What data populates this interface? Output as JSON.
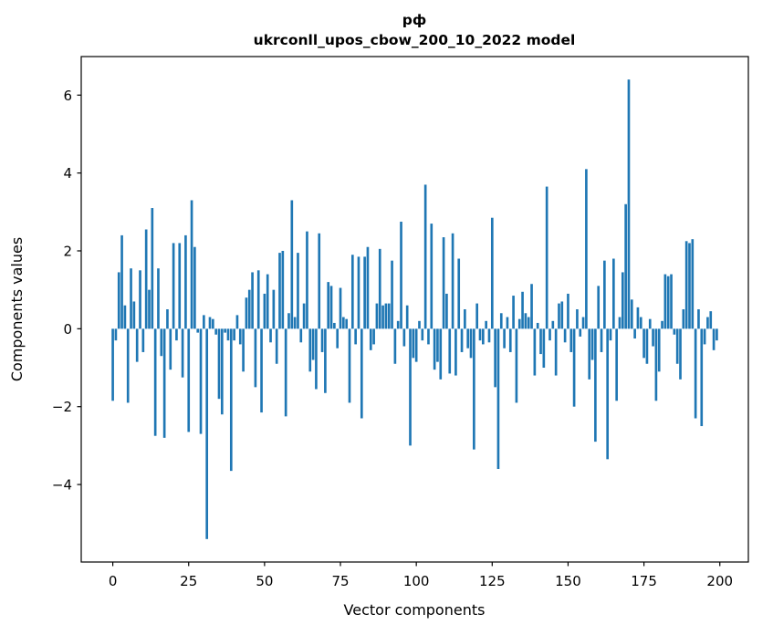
{
  "figure": {
    "title_line1": "рф",
    "title_line2": "ukrconll_upos_cbow_200_10_2022 model",
    "xlabel": "Vector components",
    "ylabel": "Components values"
  },
  "colors": {
    "bar": "#1f77b4",
    "axis": "#000000",
    "background": "#ffffff"
  },
  "chart_data": {
    "type": "bar",
    "title": "рф — ukrconll_upos_cbow_200_10_2022 model",
    "xlabel": "Vector components",
    "ylabel": "Components values",
    "xlim": [
      -10.4,
      209.4
    ],
    "ylim": [
      -5.99,
      6.99
    ],
    "xticks": [
      0,
      25,
      50,
      75,
      100,
      125,
      150,
      175,
      200
    ],
    "yticks": [
      -4,
      -2,
      0,
      2,
      4,
      6
    ],
    "bar_width": 0.8,
    "legend": "none",
    "grid": false,
    "values": [
      -1.85,
      -0.3,
      1.45,
      2.4,
      0.6,
      -1.9,
      1.55,
      0.7,
      -0.85,
      1.5,
      -0.6,
      2.55,
      1.0,
      3.1,
      -2.75,
      1.55,
      -0.7,
      -2.8,
      0.5,
      -1.05,
      2.2,
      -0.3,
      2.2,
      -1.25,
      2.4,
      -2.65,
      3.3,
      2.1,
      -0.1,
      -2.7,
      0.35,
      -5.4,
      0.3,
      0.25,
      -0.15,
      -1.8,
      -2.2,
      -0.1,
      -0.3,
      -3.65,
      -0.3,
      0.35,
      -0.4,
      -1.1,
      0.8,
      1.0,
      1.45,
      -1.5,
      1.5,
      -2.15,
      0.9,
      1.4,
      -0.35,
      1.0,
      -0.9,
      1.95,
      2.0,
      -2.25,
      0.4,
      3.3,
      0.3,
      1.95,
      -0.35,
      0.65,
      2.5,
      -1.1,
      -0.8,
      -1.55,
      2.45,
      -0.6,
      -1.65,
      1.2,
      1.1,
      0.15,
      -0.5,
      1.05,
      0.3,
      0.25,
      -1.9,
      1.9,
      -0.4,
      1.85,
      -2.3,
      1.85,
      2.1,
      -0.55,
      -0.4,
      0.65,
      2.05,
      0.6,
      0.65,
      0.65,
      1.75,
      -0.9,
      0.2,
      2.75,
      -0.45,
      0.6,
      -3.0,
      -0.75,
      -0.85,
      0.2,
      -0.3,
      3.7,
      -0.4,
      2.7,
      -1.05,
      -0.85,
      -1.3,
      2.35,
      0.9,
      -1.15,
      2.45,
      -1.2,
      1.8,
      -0.6,
      0.5,
      -0.5,
      -0.75,
      -3.1,
      0.65,
      -0.3,
      -0.4,
      0.2,
      -0.35,
      2.85,
      -1.5,
      -3.6,
      0.4,
      -0.5,
      0.3,
      -0.6,
      0.85,
      -1.9,
      0.25,
      0.95,
      0.4,
      0.3,
      1.15,
      -1.2,
      0.15,
      -0.65,
      -1.0,
      3.65,
      -0.3,
      0.2,
      -1.2,
      0.65,
      0.7,
      -0.35,
      0.9,
      -0.6,
      -2.0,
      0.5,
      -0.2,
      0.3,
      4.1,
      -1.3,
      -0.8,
      -2.9,
      1.1,
      -0.6,
      1.75,
      -3.35,
      -0.3,
      1.8,
      -1.85,
      0.3,
      1.45,
      3.2,
      6.4,
      0.75,
      -0.25,
      0.55,
      0.3,
      -0.75,
      -0.9,
      0.25,
      -0.45,
      -1.85,
      -1.1,
      0.2,
      1.4,
      1.35,
      1.4,
      -0.15,
      -0.9,
      -1.3,
      0.5,
      2.25,
      2.2,
      2.3,
      -2.3,
      0.5,
      -2.5,
      -0.4,
      0.3,
      0.45,
      -0.55,
      -0.3
    ]
  }
}
